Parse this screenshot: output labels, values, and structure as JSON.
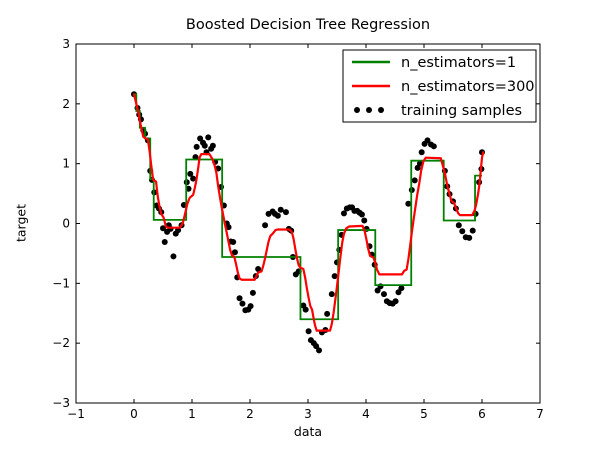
{
  "figure": {
    "background": "#ffffff",
    "frame_color": "#000000"
  },
  "chart_data": {
    "type": "line",
    "title": "Boosted Decision Tree Regression",
    "xlabel": "data",
    "ylabel": "target",
    "xlim": [
      -1,
      7
    ],
    "ylim": [
      -3,
      3
    ],
    "xticks": [
      -1,
      0,
      1,
      2,
      3,
      4,
      5,
      6,
      7
    ],
    "yticks": [
      -3,
      -2,
      -1,
      0,
      1,
      2,
      3
    ],
    "grid": false,
    "legend": {
      "position": "upper right",
      "entries": [
        {
          "label": "n_estimators=1",
          "type": "line",
          "color": "#008000"
        },
        {
          "label": "n_estimators=300",
          "type": "line",
          "color": "#ff0000"
        },
        {
          "label": "training samples",
          "type": "scatter",
          "color": "#000000"
        }
      ]
    },
    "series": [
      {
        "name": "n_estimators=1",
        "render": "step",
        "color": "#008000",
        "step_edges": [
          0.0,
          0.04,
          0.1,
          0.19,
          0.28,
          0.34,
          0.9,
          1.52,
          2.87,
          3.52,
          4.16,
          4.78,
          5.34,
          5.88,
          6.0
        ],
        "step_values": [
          2.16,
          1.88,
          1.6,
          1.42,
          0.74,
          0.06,
          1.07,
          -0.56,
          -1.6,
          -0.11,
          -1.03,
          1.05,
          0.05,
          0.8
        ]
      },
      {
        "name": "n_estimators=300",
        "render": "line",
        "color": "#ff0000",
        "points": [
          [
            0.0,
            2.16
          ],
          [
            0.03,
            2.04
          ],
          [
            0.07,
            1.88
          ],
          [
            0.1,
            1.72
          ],
          [
            0.13,
            1.58
          ],
          [
            0.16,
            1.45
          ],
          [
            0.19,
            1.43
          ],
          [
            0.24,
            1.4
          ],
          [
            0.27,
            1.2
          ],
          [
            0.3,
            0.95
          ],
          [
            0.33,
            0.73
          ],
          [
            0.38,
            0.7
          ],
          [
            0.41,
            0.45
          ],
          [
            0.44,
            0.28
          ],
          [
            0.47,
            0.16
          ],
          [
            0.51,
            0.1
          ],
          [
            0.55,
            -0.05
          ],
          [
            0.58,
            -0.07
          ],
          [
            0.79,
            -0.07
          ],
          [
            0.84,
            0.0
          ],
          [
            0.88,
            0.16
          ],
          [
            0.92,
            0.33
          ],
          [
            0.96,
            0.43
          ],
          [
            1.02,
            0.48
          ],
          [
            1.05,
            0.6
          ],
          [
            1.08,
            0.75
          ],
          [
            1.11,
            0.95
          ],
          [
            1.13,
            1.1
          ],
          [
            1.16,
            1.16
          ],
          [
            1.3,
            1.16
          ],
          [
            1.35,
            1.08
          ],
          [
            1.39,
            0.97
          ],
          [
            1.42,
            0.85
          ],
          [
            1.45,
            0.63
          ],
          [
            1.48,
            0.45
          ],
          [
            1.51,
            0.28
          ],
          [
            1.54,
            0.13
          ],
          [
            1.57,
            -0.02
          ],
          [
            1.6,
            -0.16
          ],
          [
            1.63,
            -0.31
          ],
          [
            1.66,
            -0.45
          ],
          [
            1.69,
            -0.53
          ],
          [
            1.73,
            -0.56
          ],
          [
            1.76,
            -0.68
          ],
          [
            1.79,
            -0.82
          ],
          [
            1.82,
            -0.92
          ],
          [
            1.86,
            -0.94
          ],
          [
            2.08,
            -0.94
          ],
          [
            2.11,
            -0.88
          ],
          [
            2.14,
            -0.82
          ],
          [
            2.2,
            -0.8
          ],
          [
            2.23,
            -0.7
          ],
          [
            2.26,
            -0.58
          ],
          [
            2.29,
            -0.44
          ],
          [
            2.32,
            -0.3
          ],
          [
            2.35,
            -0.21
          ],
          [
            2.4,
            -0.16
          ],
          [
            2.44,
            -0.11
          ],
          [
            2.48,
            -0.1
          ],
          [
            2.68,
            -0.1
          ],
          [
            2.72,
            -0.14
          ],
          [
            2.75,
            -0.25
          ],
          [
            2.78,
            -0.42
          ],
          [
            2.81,
            -0.58
          ],
          [
            2.84,
            -0.7
          ],
          [
            2.87,
            -0.74
          ],
          [
            2.92,
            -0.76
          ],
          [
            2.95,
            -0.9
          ],
          [
            2.98,
            -1.08
          ],
          [
            3.01,
            -1.24
          ],
          [
            3.04,
            -1.38
          ],
          [
            3.07,
            -1.44
          ],
          [
            3.09,
            -1.55
          ],
          [
            3.12,
            -1.7
          ],
          [
            3.15,
            -1.79
          ],
          [
            3.38,
            -1.79
          ],
          [
            3.41,
            -1.68
          ],
          [
            3.44,
            -1.5
          ],
          [
            3.47,
            -1.28
          ],
          [
            3.5,
            -1.05
          ],
          [
            3.53,
            -0.8
          ],
          [
            3.56,
            -0.55
          ],
          [
            3.59,
            -0.32
          ],
          [
            3.62,
            -0.17
          ],
          [
            3.66,
            -0.08
          ],
          [
            3.71,
            -0.05
          ],
          [
            3.94,
            -0.04
          ],
          [
            3.98,
            -0.14
          ],
          [
            4.01,
            -0.28
          ],
          [
            4.04,
            -0.43
          ],
          [
            4.07,
            -0.54
          ],
          [
            4.13,
            -0.57
          ],
          [
            4.16,
            -0.66
          ],
          [
            4.19,
            -0.77
          ],
          [
            4.23,
            -0.85
          ],
          [
            4.62,
            -0.85
          ],
          [
            4.66,
            -0.79
          ],
          [
            4.7,
            -0.77
          ],
          [
            4.73,
            -0.6
          ],
          [
            4.76,
            -0.38
          ],
          [
            4.79,
            -0.15
          ],
          [
            4.82,
            0.06
          ],
          [
            4.85,
            0.26
          ],
          [
            4.88,
            0.46
          ],
          [
            4.92,
            0.68
          ],
          [
            4.95,
            0.88
          ],
          [
            4.99,
            1.04
          ],
          [
            5.03,
            1.1
          ],
          [
            5.29,
            1.09
          ],
          [
            5.33,
            0.95
          ],
          [
            5.36,
            0.84
          ],
          [
            5.4,
            0.64
          ],
          [
            5.44,
            0.49
          ],
          [
            5.47,
            0.38
          ],
          [
            5.52,
            0.34
          ],
          [
            5.55,
            0.26
          ],
          [
            5.59,
            0.17
          ],
          [
            5.62,
            0.14
          ],
          [
            5.83,
            0.14
          ],
          [
            5.87,
            0.21
          ],
          [
            5.9,
            0.32
          ],
          [
            5.93,
            0.48
          ],
          [
            5.96,
            0.68
          ],
          [
            5.98,
            0.9
          ],
          [
            6.0,
            1.1
          ],
          [
            6.02,
            1.19
          ]
        ]
      },
      {
        "name": "training samples",
        "render": "scatter",
        "color": "#000000",
        "points": [
          [
            0.0,
            2.16
          ],
          [
            0.06,
            1.93
          ],
          [
            0.09,
            1.82
          ],
          [
            0.12,
            1.74
          ],
          [
            0.16,
            1.56
          ],
          [
            0.19,
            1.5
          ],
          [
            0.24,
            1.39
          ],
          [
            0.28,
            0.88
          ],
          [
            0.31,
            0.73
          ],
          [
            0.35,
            0.52
          ],
          [
            0.39,
            0.3
          ],
          [
            0.43,
            0.25
          ],
          [
            0.47,
            0.19
          ],
          [
            0.5,
            -0.08
          ],
          [
            0.53,
            -0.31
          ],
          [
            0.57,
            -0.14
          ],
          [
            0.6,
            -0.03
          ],
          [
            0.63,
            -0.09
          ],
          [
            0.68,
            -0.55
          ],
          [
            0.72,
            -0.17
          ],
          [
            0.76,
            -0.11
          ],
          [
            0.82,
            -0.03
          ],
          [
            0.86,
            0.31
          ],
          [
            0.91,
            0.69
          ],
          [
            0.94,
            0.58
          ],
          [
            0.97,
            0.83
          ],
          [
            1.02,
            0.75
          ],
          [
            1.06,
            1.11
          ],
          [
            1.08,
            1.28
          ],
          [
            1.14,
            1.42
          ],
          [
            1.19,
            1.35
          ],
          [
            1.22,
            1.3
          ],
          [
            1.25,
            1.19
          ],
          [
            1.28,
            1.44
          ],
          [
            1.33,
            1.25
          ],
          [
            1.36,
            1.3
          ],
          [
            1.4,
            1.03
          ],
          [
            1.45,
            0.92
          ],
          [
            1.5,
            0.61
          ],
          [
            1.55,
            0.3
          ],
          [
            1.6,
            0.0
          ],
          [
            1.63,
            -0.06
          ],
          [
            1.67,
            -0.3
          ],
          [
            1.71,
            -0.31
          ],
          [
            1.74,
            -0.48
          ],
          [
            1.78,
            -0.9
          ],
          [
            1.82,
            -1.25
          ],
          [
            1.87,
            -1.34
          ],
          [
            1.92,
            -1.45
          ],
          [
            1.97,
            -1.44
          ],
          [
            2.01,
            -1.38
          ],
          [
            2.05,
            -1.16
          ],
          [
            2.1,
            -0.88
          ],
          [
            2.14,
            -0.76
          ],
          [
            2.26,
            -0.03
          ],
          [
            2.32,
            0.16
          ],
          [
            2.39,
            0.2
          ],
          [
            2.43,
            0.16
          ],
          [
            2.48,
            0.13
          ],
          [
            2.53,
            0.23
          ],
          [
            2.62,
            0.19
          ],
          [
            2.67,
            -0.09
          ],
          [
            2.71,
            -0.12
          ],
          [
            2.74,
            -0.56
          ],
          [
            2.79,
            -0.85
          ],
          [
            2.84,
            -0.8
          ],
          [
            2.92,
            -1.37
          ],
          [
            2.96,
            -1.44
          ],
          [
            3.01,
            -1.8
          ],
          [
            3.05,
            -1.95
          ],
          [
            3.1,
            -2.0
          ],
          [
            3.14,
            -2.05
          ],
          [
            3.19,
            -2.12
          ],
          [
            3.24,
            -1.82
          ],
          [
            3.3,
            -1.78
          ],
          [
            3.33,
            -1.51
          ],
          [
            3.41,
            -1.18
          ],
          [
            3.46,
            -0.88
          ],
          [
            3.5,
            -0.65
          ],
          [
            3.54,
            -0.44
          ],
          [
            3.58,
            -0.19
          ],
          [
            3.62,
            0.17
          ],
          [
            3.67,
            0.25
          ],
          [
            3.72,
            0.27
          ],
          [
            3.76,
            0.27
          ],
          [
            3.8,
            0.21
          ],
          [
            3.85,
            0.21
          ],
          [
            3.89,
            0.18
          ],
          [
            3.93,
            0.15
          ],
          [
            3.97,
            0.05
          ],
          [
            4.01,
            -0.09
          ],
          [
            4.06,
            -0.38
          ],
          [
            4.1,
            -0.52
          ],
          [
            4.15,
            -0.69
          ],
          [
            4.2,
            -1.12
          ],
          [
            4.25,
            -1.05
          ],
          [
            4.31,
            -1.18
          ],
          [
            4.36,
            -1.3
          ],
          [
            4.41,
            -1.33
          ],
          [
            4.46,
            -1.34
          ],
          [
            4.51,
            -1.3
          ],
          [
            4.56,
            -1.15
          ],
          [
            4.61,
            -1.08
          ],
          [
            4.73,
            0.33
          ],
          [
            4.79,
            0.56
          ],
          [
            4.84,
            0.72
          ],
          [
            4.89,
            0.93
          ],
          [
            4.93,
            1.0
          ],
          [
            4.96,
            1.19
          ],
          [
            5.01,
            1.33
          ],
          [
            5.06,
            1.39
          ],
          [
            5.12,
            1.32
          ],
          [
            5.17,
            1.29
          ],
          [
            5.36,
            0.88
          ],
          [
            5.4,
            0.62
          ],
          [
            5.44,
            0.49
          ],
          [
            5.5,
            0.37
          ],
          [
            5.55,
            0.25
          ],
          [
            5.6,
            -0.03
          ],
          [
            5.66,
            -0.13
          ],
          [
            5.72,
            -0.23
          ],
          [
            5.78,
            -0.24
          ],
          [
            5.84,
            -0.12
          ],
          [
            5.89,
            0.16
          ],
          [
            5.95,
            0.69
          ],
          [
            5.99,
            0.91
          ],
          [
            6.0,
            1.19
          ]
        ]
      }
    ]
  }
}
